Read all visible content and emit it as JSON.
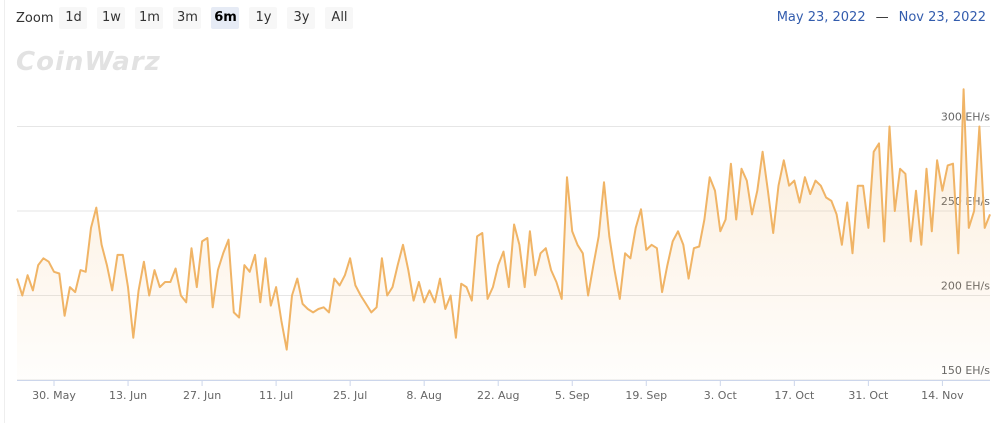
{
  "zoom_label": "Zoom",
  "zoom_buttons": [
    "1d",
    "1w",
    "1m",
    "3m",
    "6m",
    "1y",
    "3y",
    "All"
  ],
  "selected_zoom_index": 4,
  "range_from": "May 23, 2022",
  "range_separator": "—",
  "range_to": "Nov 23, 2022",
  "chart_data": {
    "type": "line",
    "watermark": "CoinWarz",
    "color": "#f0b466",
    "categories": [
      null,
      null,
      null,
      null,
      null,
      null,
      null,
      "30. May",
      null,
      null,
      null,
      null,
      null,
      null,
      null,
      null,
      null,
      null,
      null,
      null,
      null,
      "13. Jun",
      null,
      null,
      null,
      null,
      null,
      null,
      null,
      null,
      null,
      null,
      null,
      null,
      null,
      "27. Jun",
      null,
      null,
      null,
      null,
      null,
      null,
      null,
      null,
      null,
      null,
      null,
      null,
      null,
      "11. Jul",
      null,
      null,
      null,
      null,
      null,
      null,
      null,
      null,
      null,
      null,
      null,
      null,
      null,
      "25. Jul",
      null,
      null,
      null,
      null,
      null,
      null,
      null,
      null,
      null,
      null,
      null,
      null,
      null,
      "8. Aug",
      null,
      null,
      null,
      null,
      null,
      null,
      null,
      null,
      null,
      null,
      null,
      null,
      null,
      "22. Aug",
      null,
      null,
      null,
      null,
      null,
      null,
      null,
      null,
      null,
      null,
      null,
      null,
      null,
      "5. Sep",
      null,
      null,
      null,
      null,
      null,
      null,
      null,
      null,
      null,
      null,
      null,
      null,
      null,
      "19. Sep",
      null,
      null,
      null,
      null,
      null,
      null,
      null,
      null,
      null,
      null,
      null,
      null,
      null,
      "3. Oct",
      null,
      null,
      null,
      null,
      null,
      null,
      null,
      null,
      null,
      null,
      null,
      null,
      null,
      "17. Oct",
      null,
      null,
      null,
      null,
      null,
      null,
      null,
      null,
      null,
      null,
      null,
      null,
      null,
      "31. Oct",
      null,
      null,
      null,
      null,
      null,
      null,
      null,
      null,
      null,
      null,
      null,
      null,
      null,
      "14. Nov",
      null,
      null,
      null,
      null,
      null,
      null,
      null,
      null,
      null
    ],
    "values": [
      210,
      200,
      212,
      203,
      218,
      222,
      220,
      214,
      213,
      188,
      205,
      202,
      215,
      214,
      240,
      252,
      230,
      218,
      203,
      224,
      224,
      205,
      175,
      203,
      220,
      200,
      215,
      205,
      208,
      208,
      216,
      200,
      196,
      228,
      205,
      232,
      234,
      193,
      215,
      225,
      233,
      190,
      187,
      218,
      214,
      224,
      196,
      222,
      194,
      205,
      185,
      168,
      200,
      210,
      195,
      192,
      190,
      192,
      193,
      190,
      210,
      206,
      212,
      222,
      206,
      200,
      195,
      190,
      193,
      222,
      200,
      205,
      218,
      230,
      215,
      197,
      208,
      196,
      203,
      196,
      210,
      192,
      200,
      175,
      207,
      205,
      197,
      235,
      237,
      198,
      205,
      218,
      226,
      205,
      242,
      230,
      205,
      238,
      212,
      225,
      228,
      215,
      208,
      198,
      270,
      238,
      230,
      225,
      200,
      218,
      235,
      267,
      235,
      215,
      198,
      225,
      222,
      240,
      251,
      227,
      230,
      228,
      202,
      218,
      232,
      238,
      230,
      210,
      228,
      229,
      245,
      270,
      262,
      238,
      245,
      278,
      245,
      275,
      268,
      248,
      262,
      285,
      262,
      237,
      265,
      280,
      265,
      268,
      255,
      270,
      260,
      268,
      265,
      258,
      256,
      248,
      230,
      255,
      225,
      265,
      265,
      240,
      285,
      290,
      232,
      300,
      250,
      275,
      272,
      232,
      262,
      230,
      275,
      238,
      280,
      262,
      277,
      278,
      225,
      322,
      240,
      250,
      300,
      240,
      248
    ],
    "ylim": [
      150,
      350
    ],
    "yticks": [
      {
        "value": 150,
        "label": "150 EH/s"
      },
      {
        "value": 200,
        "label": "200 EH/s"
      },
      {
        "value": 250,
        "label": "250 EH/s"
      },
      {
        "value": 300,
        "label": "300 EH/s"
      }
    ],
    "grid": true
  }
}
